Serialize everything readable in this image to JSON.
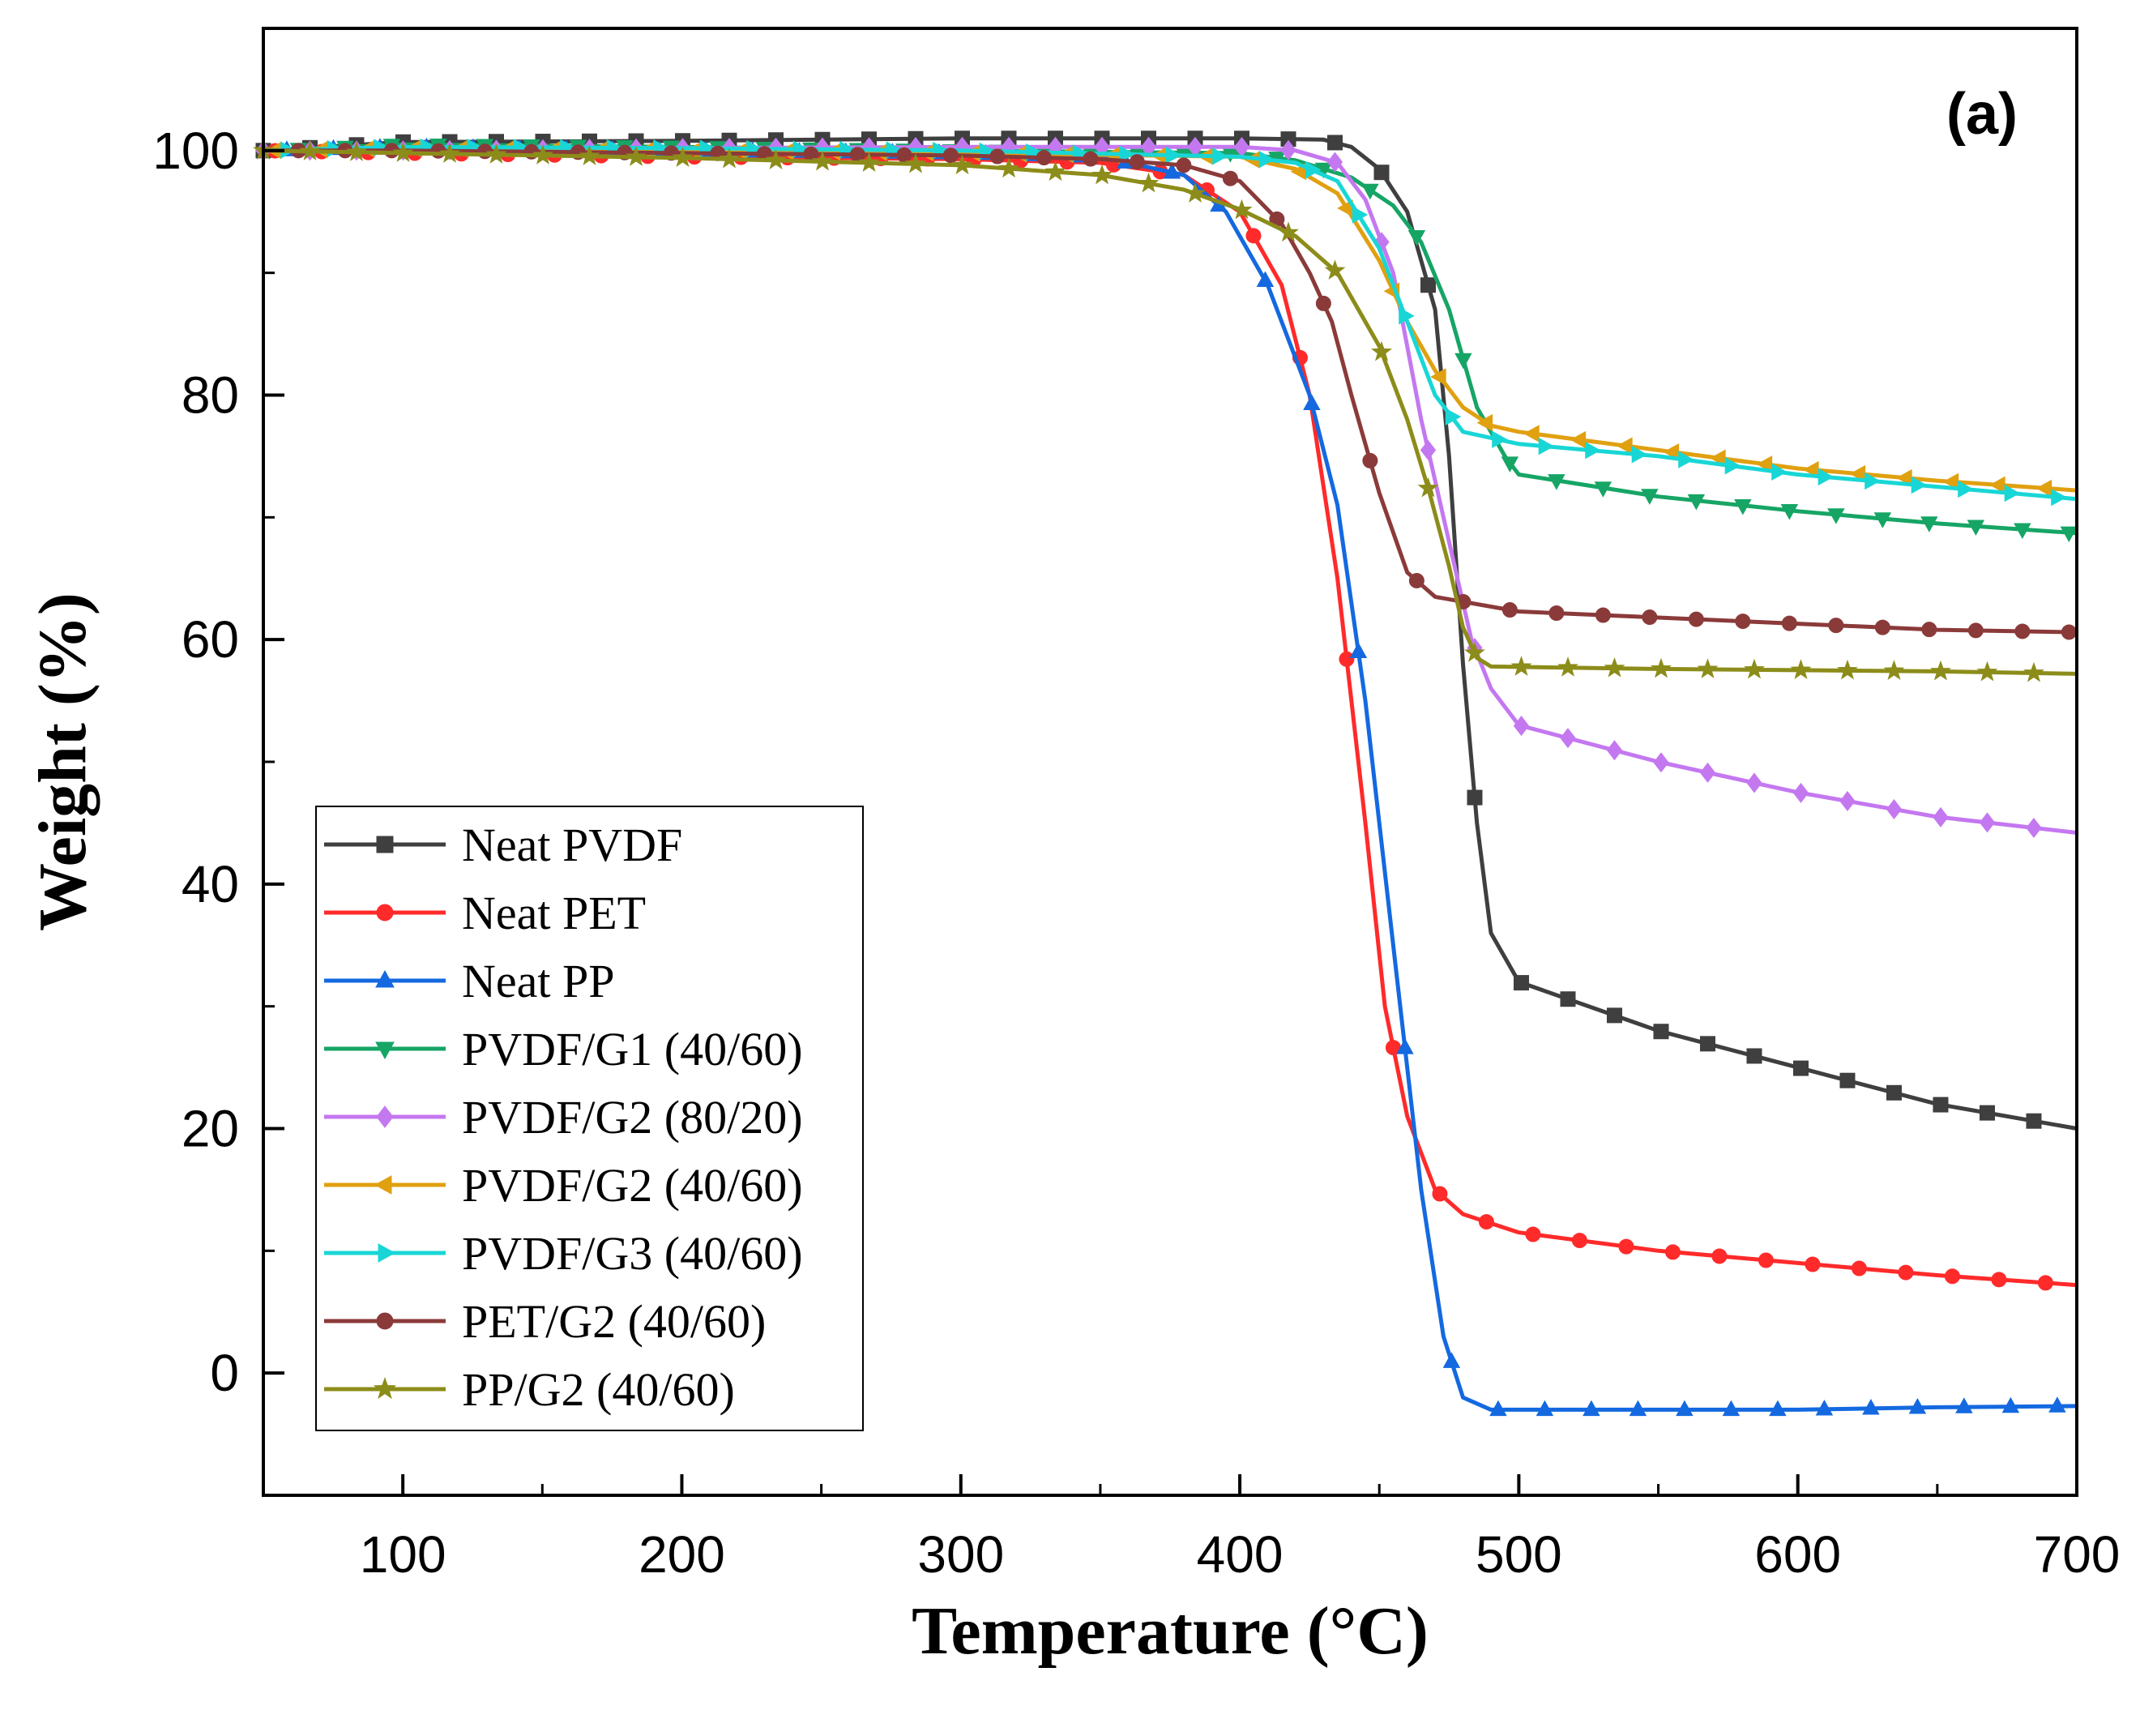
{
  "chart_data": {
    "type": "line",
    "panel_label": "(a)",
    "xlabel": "Temperature (°C)",
    "ylabel": "Weight (%)",
    "xlim": [
      50,
      700
    ],
    "ylim": [
      -10,
      110
    ],
    "xticks": [
      100,
      200,
      300,
      400,
      500,
      600,
      700
    ],
    "yticks": [
      0,
      20,
      40,
      60,
      80,
      100
    ],
    "legend_position": "bottom-left",
    "series": [
      {
        "name": "Neat PVDF",
        "color": "#3f3f3f",
        "marker": "square",
        "points": [
          [
            50,
            100
          ],
          [
            100,
            100.7
          ],
          [
            200,
            100.8
          ],
          [
            300,
            101
          ],
          [
            400,
            101
          ],
          [
            430,
            100.9
          ],
          [
            440,
            100.3
          ],
          [
            450,
            98.5
          ],
          [
            460,
            95
          ],
          [
            470,
            87
          ],
          [
            475,
            75
          ],
          [
            480,
            58
          ],
          [
            485,
            45
          ],
          [
            490,
            36
          ],
          [
            500,
            32
          ],
          [
            550,
            28
          ],
          [
            600,
            25
          ],
          [
            650,
            22
          ],
          [
            700,
            20
          ]
        ]
      },
      {
        "name": "Neat PET",
        "color": "#ff2a2a",
        "marker": "circle",
        "points": [
          [
            50,
            100
          ],
          [
            100,
            99.8
          ],
          [
            200,
            99.5
          ],
          [
            300,
            99.3
          ],
          [
            350,
            99
          ],
          [
            380,
            98
          ],
          [
            400,
            95
          ],
          [
            415,
            89
          ],
          [
            425,
            80
          ],
          [
            435,
            65
          ],
          [
            445,
            45
          ],
          [
            452,
            30
          ],
          [
            460,
            21
          ],
          [
            470,
            15
          ],
          [
            480,
            13
          ],
          [
            500,
            11.5
          ],
          [
            550,
            10
          ],
          [
            600,
            9
          ],
          [
            650,
            8
          ],
          [
            700,
            7.2
          ]
        ]
      },
      {
        "name": "Neat PP",
        "color": "#1469e0",
        "marker": "triangle-up",
        "points": [
          [
            50,
            100
          ],
          [
            100,
            100.3
          ],
          [
            200,
            100
          ],
          [
            300,
            99.8
          ],
          [
            350,
            99.5
          ],
          [
            380,
            98
          ],
          [
            395,
            95
          ],
          [
            410,
            89
          ],
          [
            425,
            80
          ],
          [
            435,
            71
          ],
          [
            445,
            55
          ],
          [
            455,
            35
          ],
          [
            465,
            15
          ],
          [
            473,
            3
          ],
          [
            480,
            -2
          ],
          [
            490,
            -3
          ],
          [
            550,
            -3
          ],
          [
            600,
            -3
          ],
          [
            650,
            -2.8
          ],
          [
            700,
            -2.7
          ]
        ]
      },
      {
        "name": "PVDF/G1 (40/60)",
        "color": "#16a565",
        "marker": "triangle-down",
        "points": [
          [
            50,
            100
          ],
          [
            100,
            100.5
          ],
          [
            200,
            100.3
          ],
          [
            300,
            100
          ],
          [
            400,
            99.8
          ],
          [
            420,
            99.2
          ],
          [
            440,
            97.8
          ],
          [
            455,
            95.5
          ],
          [
            465,
            92.5
          ],
          [
            475,
            87
          ],
          [
            485,
            79
          ],
          [
            495,
            75
          ],
          [
            500,
            73.5
          ],
          [
            550,
            71.7
          ],
          [
            600,
            70.5
          ],
          [
            650,
            69.5
          ],
          [
            700,
            68.7
          ]
        ]
      },
      {
        "name": "PVDF/G2 (80/20)",
        "color": "#c478f0",
        "marker": "diamond",
        "points": [
          [
            50,
            100
          ],
          [
            100,
            100
          ],
          [
            200,
            100.2
          ],
          [
            300,
            100.3
          ],
          [
            400,
            100.3
          ],
          [
            420,
            100
          ],
          [
            435,
            99
          ],
          [
            445,
            96
          ],
          [
            455,
            90
          ],
          [
            465,
            78
          ],
          [
            475,
            68
          ],
          [
            483,
            60
          ],
          [
            490,
            56
          ],
          [
            500,
            53
          ],
          [
            550,
            50
          ],
          [
            600,
            47.5
          ],
          [
            650,
            45.5
          ],
          [
            700,
            44.2
          ]
        ]
      },
      {
        "name": "PVDF/G2 (40/60)",
        "color": "#e0a010",
        "marker": "triangle-left",
        "points": [
          [
            50,
            100
          ],
          [
            100,
            100.2
          ],
          [
            200,
            100
          ],
          [
            300,
            99.8
          ],
          [
            400,
            99.5
          ],
          [
            420,
            98.5
          ],
          [
            435,
            96.5
          ],
          [
            450,
            91
          ],
          [
            460,
            86
          ],
          [
            470,
            82
          ],
          [
            480,
            79
          ],
          [
            490,
            77.5
          ],
          [
            500,
            77
          ],
          [
            550,
            75.5
          ],
          [
            600,
            74
          ],
          [
            650,
            73
          ],
          [
            700,
            72.2
          ]
        ]
      },
      {
        "name": "PVDF/G3 (40/60)",
        "color": "#19d6d6",
        "marker": "triangle-right",
        "points": [
          [
            50,
            100
          ],
          [
            100,
            100.3
          ],
          [
            200,
            100.2
          ],
          [
            300,
            100
          ],
          [
            400,
            99.5
          ],
          [
            420,
            99
          ],
          [
            435,
            97.5
          ],
          [
            450,
            92
          ],
          [
            460,
            86
          ],
          [
            470,
            80
          ],
          [
            480,
            77
          ],
          [
            500,
            76
          ],
          [
            550,
            75
          ],
          [
            600,
            73.5
          ],
          [
            650,
            72.5
          ],
          [
            700,
            71.5
          ]
        ]
      },
      {
        "name": "PET/G2 (40/60)",
        "color": "#8b3a3a",
        "marker": "circle",
        "points": [
          [
            50,
            100
          ],
          [
            100,
            100
          ],
          [
            200,
            99.8
          ],
          [
            300,
            99.6
          ],
          [
            350,
            99.3
          ],
          [
            380,
            98.8
          ],
          [
            400,
            97.5
          ],
          [
            415,
            94
          ],
          [
            425,
            90
          ],
          [
            433,
            86
          ],
          [
            440,
            80
          ],
          [
            450,
            72
          ],
          [
            460,
            65.5
          ],
          [
            470,
            63.5
          ],
          [
            500,
            62.3
          ],
          [
            550,
            61.8
          ],
          [
            600,
            61.3
          ],
          [
            650,
            60.8
          ],
          [
            700,
            60.6
          ]
        ]
      },
      {
        "name": "PP/G2 (40/60)",
        "color": "#8c8c1a",
        "marker": "star",
        "points": [
          [
            50,
            100
          ],
          [
            100,
            99.8
          ],
          [
            200,
            99.4
          ],
          [
            300,
            98.8
          ],
          [
            350,
            98
          ],
          [
            380,
            96.8
          ],
          [
            400,
            95.2
          ],
          [
            420,
            93
          ],
          [
            435,
            90
          ],
          [
            450,
            84
          ],
          [
            460,
            78
          ],
          [
            468,
            72
          ],
          [
            475,
            66
          ],
          [
            480,
            61
          ],
          [
            485,
            58.5
          ],
          [
            490,
            57.8
          ],
          [
            550,
            57.6
          ],
          [
            600,
            57.5
          ],
          [
            650,
            57.4
          ],
          [
            700,
            57.2
          ]
        ]
      }
    ]
  }
}
